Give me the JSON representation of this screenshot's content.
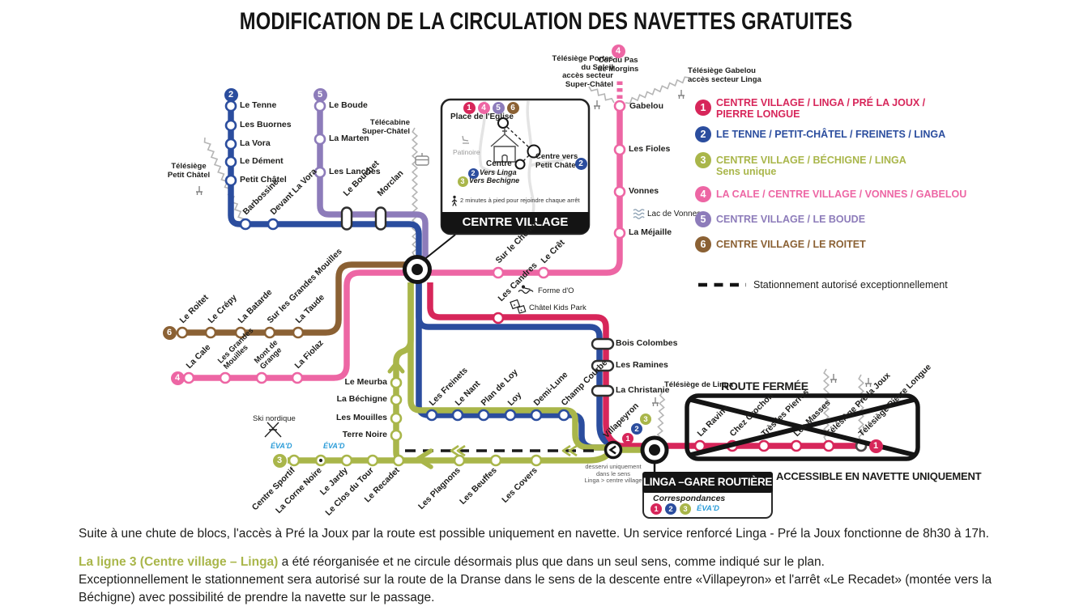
{
  "title": "MODIFICATION DE LA CIRCULATION DES NAVETTES GRATUITES",
  "colors": {
    "line1": "#d7265a",
    "line2": "#2b4d9e",
    "line3": "#a9b64a",
    "line4": "#ed66a4",
    "line5": "#8d7cba",
    "line6": "#8b6134",
    "black": "#1d1d1b",
    "evad_blue": "#2b9cd8",
    "grey": "#9a9a9a"
  },
  "legend": {
    "routes": [
      {
        "num": "1",
        "color": "line1",
        "lines": [
          "CENTRE VILLAGE / LINGA / PRÉ LA JOUX /",
          "PIERRE LONGUE"
        ]
      },
      {
        "num": "2",
        "color": "line2",
        "lines": [
          "LE TENNE / PETIT-CHÂTEL / FREINETS / LINGA"
        ]
      },
      {
        "num": "3",
        "color": "line3",
        "lines": [
          "CENTRE VILLAGE / BÉCHIGNE / LINGA",
          "Sens unique"
        ]
      },
      {
        "num": "4",
        "color": "line4",
        "lines": [
          "LA CALE / CENTRE VILLAGE / VONNES / GABELOU"
        ]
      },
      {
        "num": "5",
        "color": "line5",
        "lines": [
          "CENTRE VILLAGE / LE BOUDE"
        ]
      },
      {
        "num": "6",
        "color": "line6",
        "lines": [
          "CENTRE VILLAGE / LE ROITET"
        ]
      }
    ],
    "dashed_note": "Stationnement autorisé exceptionnellement"
  },
  "stops": {
    "line2_vertical": [
      "Le Tenne",
      "Les Buornes",
      "La Vora",
      "Le Dément",
      "Petit Châtel"
    ],
    "line2_diagonal": [
      "Barbossine",
      "Devant La Vora"
    ],
    "top_pills": [
      "Le Bouchet",
      "Morclan"
    ],
    "line5_vertical": [
      "Le Boude",
      "La Marten",
      "Les Lanches"
    ],
    "line6": [
      "Le Roitet",
      "Le Crépy",
      "La Batarde",
      "Sur les Grandes Mouilles",
      "La Taude"
    ],
    "line4_west": [
      "La Cale",
      "Les Grandes\nMouilles",
      "Mont de\nGrange",
      "La Fiolaz"
    ],
    "line4_mid": [
      "Sur le Chemin",
      "Le Crêt"
    ],
    "line4_vertical": [
      "La Méjaille",
      "Vonnes",
      "Les Fioles"
    ],
    "gabelou": "Gabelou",
    "line1_stop": "Les Candres",
    "line3_vertical": [
      "Le Meurba",
      "La Béchigne",
      "Les Mouilles",
      "Terre Noire"
    ],
    "mid_horizontal": [
      "Les Freinets",
      "Le Nant",
      "Plan de Loy",
      "Loy",
      "Demi-Lune",
      "Champ Courbe"
    ],
    "right_pills": [
      "Bois Colombes",
      "Les Ramines",
      "La Christanie"
    ],
    "line3_bottom": [
      "Centre Sportif",
      "La Corne Noire",
      "Le Jardy",
      "Le Clos du Tour",
      "Le Recadet",
      "Les Plagnons",
      "Les Beuffes",
      "Les Covers"
    ],
    "villapeyron": "Villapeyron",
    "route_fermee": [
      "La Ravine",
      "Chez Crochon",
      "Très les Pierres",
      "Les Masses",
      "Télésiège Pré la Joux",
      "Télésiège Pierre Longue"
    ]
  },
  "landmarks": {
    "telesiege_petit_chatel": "Télésiège\nPetit Châtel",
    "telecabine_super_chatel": "Télécabine\nSuper-Châtel",
    "telesiege_portes": "Télésiège Portes\ndu Soleil\naccès secteur\nSuper-Châtel",
    "col_du_pas": "Col du Pas\nde Morgins",
    "telesiege_gabelou": "Télésiège Gabelou\naccès secteur Linga",
    "lac_de_vonnes": "Lac de Vonnes",
    "forme_do": "Forme d'O",
    "chatel_kids_park": "Châtel Kids Park",
    "ski_nordique": "Ski nordique",
    "telesiege_de_linga": "Télésiège de Linga",
    "evad": "ÉVA'D"
  },
  "inset": {
    "badges": [
      "1",
      "4",
      "5",
      "6"
    ],
    "place_eglise": "Place de l'Eglise",
    "patinoire": "Patinoire",
    "centre": "Centre",
    "badge2": "2",
    "vers_linga": "Vers Linga",
    "badge3": "3",
    "vers_bechigne": "Vers Bechigne",
    "centre_vers": "Centre vers\nPetit Châtel",
    "walk_note": "2 minutes à pied pour rejoindre chaque arrêt",
    "banner": "CENTRE VILLAGE"
  },
  "linga": {
    "banner": "LINGA –GARE ROUTIÈRE",
    "correspondances": "Correspondances",
    "badges": [
      "1",
      "2",
      "3"
    ],
    "evad": "ÉVA'D",
    "one_way_note": "desservi uniquement\ndans le sens\nLinga > centre village"
  },
  "route_fermee": {
    "title": "ROUTE FERMÉE",
    "accessible": "ACCESSIBLE EN NAVETTE UNIQUEMENT"
  },
  "footer": {
    "p1": "Suite à une chute de blocs, l'accès à Pré la Joux par la route est possible uniquement en navette. Un service renforcé Linga - Pré la Joux fonctionne de 8h30 à 17h.",
    "p2_highlight": "La ligne 3 (Centre village – Linga)",
    "p2_rest": " a été réorganisée et ne circule désormais plus que dans un seul sens, comme indiqué sur le plan.",
    "p3": "Exceptionnellement le stationnement sera autorisé sur la route de la Dranse dans le sens de la descente entre «Villapeyron» et l'arrêt «Le Recadet» (montée vers la Béchigne) avec possibilité de prendre la navette sur le passage."
  }
}
